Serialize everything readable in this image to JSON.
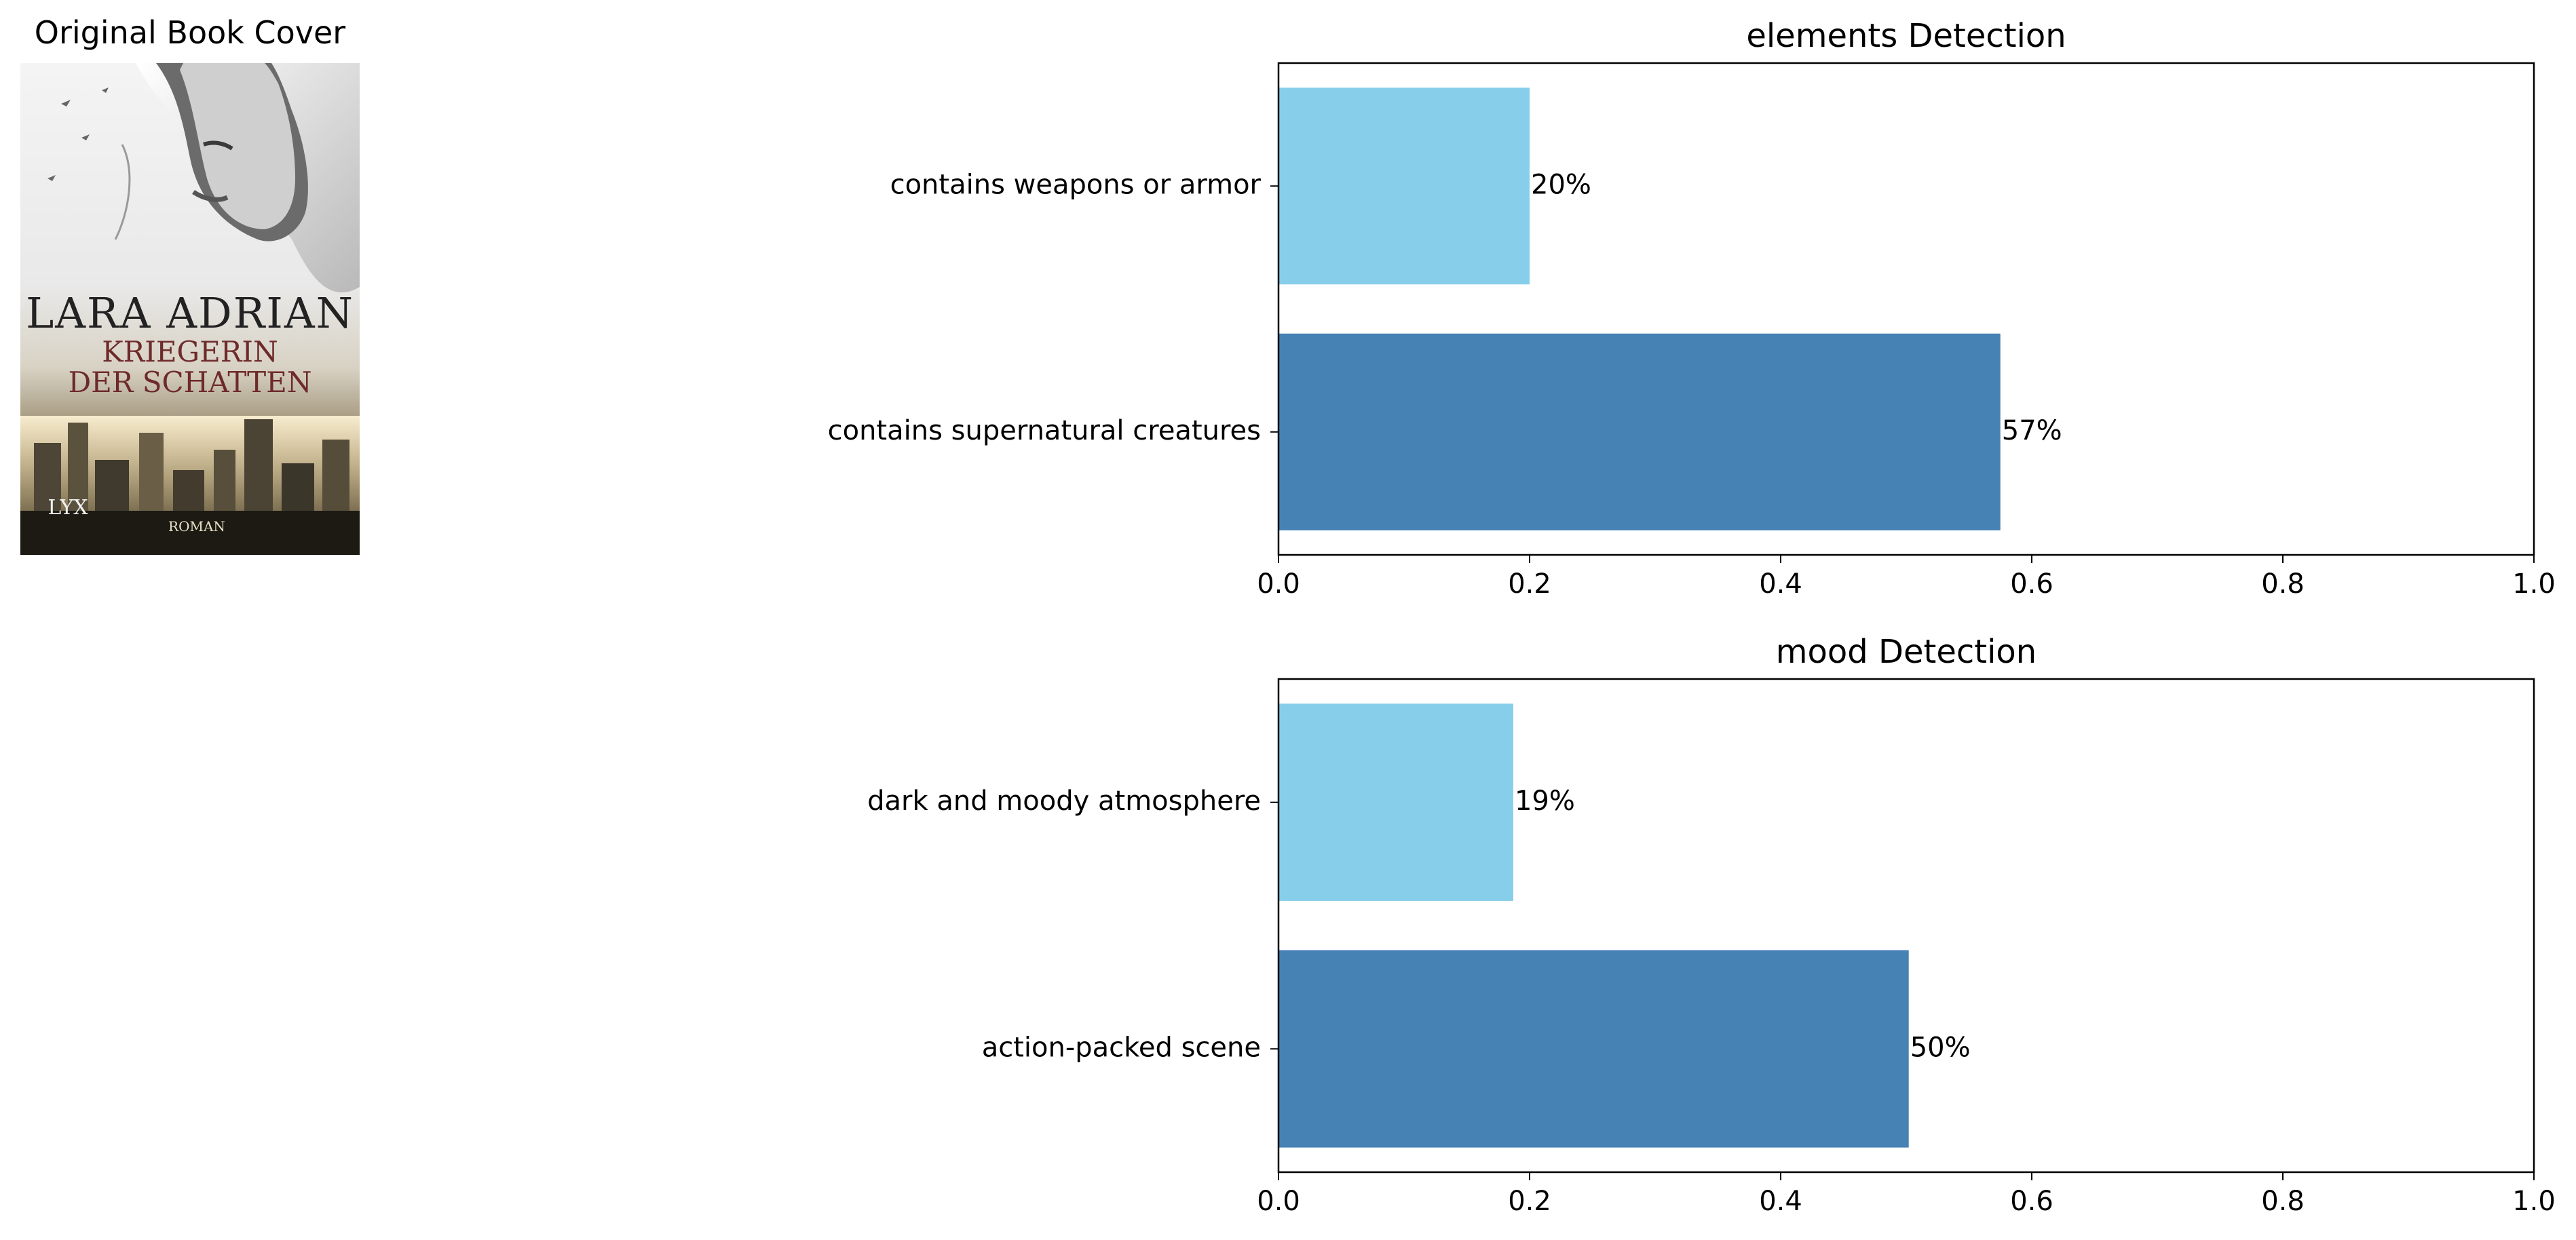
{
  "cover": {
    "title": "Original Book Cover",
    "author_text": "LARA ADRIAN",
    "book_title_line1": "KRIEGERIN",
    "book_title_line2": "DER SCHATTEN",
    "publisher_text": "LYX",
    "genre_text": "ROMAN"
  },
  "chart_data": [
    {
      "type": "bar",
      "orientation": "horizontal",
      "title": "elements Detection",
      "categories": [
        "contains weapons or armor",
        "contains supernatural creatures"
      ],
      "values": [
        0.2,
        0.575
      ],
      "value_labels": [
        "20%",
        "57%"
      ],
      "colors": [
        "#87CEEB",
        "#4682B4"
      ],
      "xlim": [
        0,
        1.0
      ],
      "xticks": [
        "0.0",
        "0.2",
        "0.4",
        "0.6",
        "0.8",
        "1.0"
      ],
      "grid": false
    },
    {
      "type": "bar",
      "orientation": "horizontal",
      "title": "mood Detection",
      "categories": [
        "dark and moody atmosphere",
        "action-packed scene"
      ],
      "values": [
        0.187,
        0.502
      ],
      "value_labels": [
        "19%",
        "50%"
      ],
      "colors": [
        "#87CEEB",
        "#4682B4"
      ],
      "xlim": [
        0,
        1.0
      ],
      "xticks": [
        "0.0",
        "0.2",
        "0.4",
        "0.6",
        "0.8",
        "1.0"
      ],
      "grid": false
    }
  ]
}
